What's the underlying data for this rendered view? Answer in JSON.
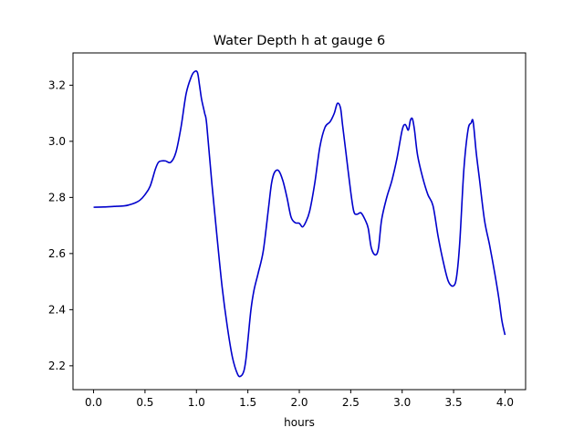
{
  "chart_data": {
    "type": "line",
    "title": "Water Depth h at gauge 6",
    "xlabel": "hours",
    "ylabel": "",
    "xlim": [
      -0.2,
      4.2
    ],
    "ylim": [
      2.115,
      3.315
    ],
    "xticks": [
      0.0,
      0.5,
      1.0,
      1.5,
      2.0,
      2.5,
      3.0,
      3.5,
      4.0
    ],
    "xtick_labels": [
      "0.0",
      "0.5",
      "1.0",
      "1.5",
      "2.0",
      "2.5",
      "3.0",
      "3.5",
      "4.0"
    ],
    "yticks": [
      2.2,
      2.4,
      2.6,
      2.8,
      3.0,
      3.2
    ],
    "ytick_labels": [
      "2.2",
      "2.4",
      "2.6",
      "2.8",
      "3.0",
      "3.2"
    ],
    "grid": false,
    "series": [
      {
        "color": "#0000cc",
        "x": [
          0.0,
          0.1,
          0.2,
          0.3,
          0.35,
          0.4,
          0.45,
          0.5,
          0.55,
          0.6,
          0.63,
          0.66,
          0.7,
          0.75,
          0.8,
          0.85,
          0.9,
          0.95,
          0.98,
          1.01,
          1.03,
          1.05,
          1.08,
          1.1,
          1.15,
          1.2,
          1.25,
          1.3,
          1.35,
          1.4,
          1.43,
          1.46,
          1.48,
          1.5,
          1.53,
          1.56,
          1.6,
          1.65,
          1.7,
          1.73,
          1.76,
          1.8,
          1.84,
          1.88,
          1.92,
          1.96,
          2.0,
          2.03,
          2.06,
          2.1,
          2.15,
          2.2,
          2.25,
          2.3,
          2.34,
          2.37,
          2.4,
          2.42,
          2.45,
          2.5,
          2.53,
          2.56,
          2.6,
          2.64,
          2.67,
          2.7,
          2.74,
          2.77,
          2.8,
          2.85,
          2.9,
          2.95,
          3.0,
          3.03,
          3.06,
          3.08,
          3.1,
          3.12,
          3.15,
          3.2,
          3.25,
          3.3,
          3.35,
          3.4,
          3.45,
          3.5,
          3.53,
          3.56,
          3.6,
          3.64,
          3.67,
          3.69,
          3.72,
          3.75,
          3.8,
          3.85,
          3.9,
          3.94,
          3.97,
          4.0
        ],
        "y": [
          2.765,
          2.766,
          2.768,
          2.77,
          2.774,
          2.78,
          2.79,
          2.81,
          2.84,
          2.9,
          2.925,
          2.93,
          2.93,
          2.925,
          2.96,
          3.05,
          3.17,
          3.23,
          3.248,
          3.245,
          3.2,
          3.15,
          3.1,
          3.06,
          2.85,
          2.66,
          2.48,
          2.34,
          2.23,
          2.17,
          2.163,
          2.18,
          2.22,
          2.29,
          2.4,
          2.47,
          2.53,
          2.61,
          2.76,
          2.85,
          2.89,
          2.895,
          2.86,
          2.8,
          2.73,
          2.71,
          2.708,
          2.695,
          2.71,
          2.75,
          2.85,
          2.98,
          3.05,
          3.07,
          3.1,
          3.135,
          3.12,
          3.06,
          2.97,
          2.82,
          2.75,
          2.74,
          2.745,
          2.72,
          2.69,
          2.62,
          2.595,
          2.62,
          2.72,
          2.8,
          2.86,
          2.94,
          3.04,
          3.06,
          3.04,
          3.075,
          3.08,
          3.04,
          2.95,
          2.87,
          2.81,
          2.77,
          2.66,
          2.57,
          2.5,
          2.485,
          2.52,
          2.64,
          2.9,
          3.04,
          3.065,
          3.07,
          2.96,
          2.87,
          2.72,
          2.63,
          2.53,
          2.44,
          2.36,
          2.31
        ]
      }
    ]
  }
}
